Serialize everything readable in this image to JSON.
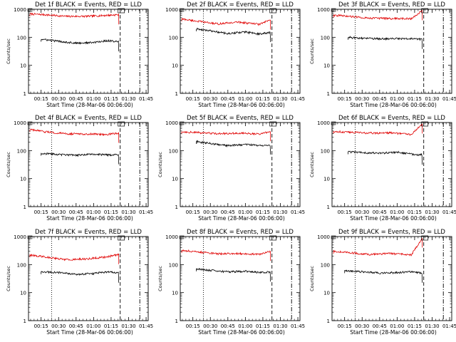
{
  "chart_data": [
    {
      "type": "line",
      "title": "Det 1f BLACK = Events, RED = LLD",
      "xlabel": "Start Time (28-Mar-06 00:06:00)",
      "ylabel": "Counts/sec",
      "xlim": [
        0.07,
        1.78
      ],
      "ylim": [
        1,
        1000
      ],
      "yscale": "log",
      "x_tick_labels": [
        "00:15",
        "00:30",
        "00:45",
        "01:00",
        "01:15",
        "01:30",
        "01:45"
      ],
      "x_tick_values": [
        0.25,
        0.5,
        0.75,
        1.0,
        1.25,
        1.5,
        1.75
      ],
      "y_tick_labels": [
        "1",
        "10",
        "100",
        "1000"
      ],
      "y_tick_values": [
        1,
        10,
        100,
        1000
      ],
      "vlines": [
        {
          "x": 0.4,
          "style": "dotted"
        },
        {
          "x": 1.38,
          "style": "dash"
        },
        {
          "x": 1.66,
          "style": "dashdot"
        }
      ],
      "series": [
        {
          "color": "#e00000",
          "x": [
            0.09,
            0.3,
            0.6,
            0.9,
            1.2,
            1.36
          ],
          "y": [
            680,
            640,
            560,
            560,
            610,
            640
          ]
        },
        {
          "color": "#000000",
          "x": [
            0.25,
            0.5,
            0.75,
            1.0,
            1.2,
            1.36
          ],
          "y": [
            85,
            72,
            62,
            65,
            76,
            70
          ]
        }
      ]
    },
    {
      "type": "line",
      "title": "Det 2f BLACK = Events, RED = LLD",
      "xlabel": "Start Time (28-Mar-06 00:06:00)",
      "ylabel": "",
      "xlim": [
        0.07,
        1.78
      ],
      "ylim": [
        1,
        1000
      ],
      "yscale": "log",
      "x_tick_labels": [
        "00:15",
        "00:30",
        "00:45",
        "01:00",
        "01:15",
        "01:30",
        "01:45"
      ],
      "x_tick_values": [
        0.25,
        0.5,
        0.75,
        1.0,
        1.25,
        1.5,
        1.75
      ],
      "y_tick_labels": [
        "1",
        "10",
        "100",
        "1000"
      ],
      "y_tick_values": [
        1,
        10,
        100,
        1000
      ],
      "vlines": [
        {
          "x": 0.4,
          "style": "dotted"
        },
        {
          "x": 1.38,
          "style": "dash"
        },
        {
          "x": 1.66,
          "style": "dashdot"
        }
      ],
      "series": [
        {
          "color": "#e00000",
          "x": [
            0.09,
            0.3,
            0.6,
            0.9,
            1.2,
            1.36
          ],
          "y": [
            450,
            380,
            300,
            350,
            290,
            420
          ]
        },
        {
          "color": "#000000",
          "x": [
            0.3,
            0.5,
            0.75,
            1.0,
            1.2,
            1.36
          ],
          "y": [
            200,
            170,
            135,
            155,
            130,
            150
          ]
        }
      ]
    },
    {
      "type": "line",
      "title": "Det 3f BLACK = Events, RED = LLD",
      "xlabel": "Start Time (28-Mar-06 00:06:00)",
      "ylabel": "Counts/sec",
      "xlim": [
        0.07,
        1.78
      ],
      "ylim": [
        1,
        1000
      ],
      "yscale": "log",
      "x_tick_labels": [
        "00:15",
        "00:30",
        "00:45",
        "01:00",
        "01:15",
        "01:30",
        "01:45"
      ],
      "x_tick_values": [
        0.25,
        0.5,
        0.75,
        1.0,
        1.25,
        1.5,
        1.75
      ],
      "y_tick_labels": [
        "1",
        "10",
        "100",
        "1000"
      ],
      "y_tick_values": [
        1,
        10,
        100,
        1000
      ],
      "vlines": [
        {
          "x": 0.4,
          "style": "dotted"
        },
        {
          "x": 1.38,
          "style": "dash"
        },
        {
          "x": 1.66,
          "style": "dashdot"
        }
      ],
      "series": [
        {
          "color": "#e00000",
          "x": [
            0.09,
            0.3,
            0.6,
            0.9,
            1.2,
            1.36
          ],
          "y": [
            620,
            560,
            490,
            470,
            460,
            900
          ]
        },
        {
          "color": "#000000",
          "x": [
            0.3,
            0.5,
            0.75,
            1.0,
            1.2,
            1.36
          ],
          "y": [
            100,
            92,
            88,
            90,
            88,
            85
          ]
        }
      ]
    },
    {
      "type": "line",
      "title": "Det 4f BLACK = Events, RED = LLD",
      "xlabel": "Start Time (28-Mar-06 00:06:00)",
      "ylabel": "Counts/sec",
      "xlim": [
        0.07,
        1.78
      ],
      "ylim": [
        1,
        1000
      ],
      "yscale": "log",
      "x_tick_labels": [
        "00:15",
        "00:30",
        "00:45",
        "01:00",
        "01:15",
        "01:30",
        "01:45"
      ],
      "x_tick_values": [
        0.25,
        0.5,
        0.75,
        1.0,
        1.25,
        1.5,
        1.75
      ],
      "y_tick_labels": [
        "1",
        "10",
        "100",
        "1000"
      ],
      "y_tick_values": [
        1,
        10,
        100,
        1000
      ],
      "vlines": [
        {
          "x": 0.4,
          "style": "dotted"
        },
        {
          "x": 1.38,
          "style": "dash"
        },
        {
          "x": 1.66,
          "style": "dashdot"
        }
      ],
      "series": [
        {
          "color": "#e00000",
          "x": [
            0.09,
            0.3,
            0.6,
            0.9,
            1.2,
            1.36
          ],
          "y": [
            560,
            470,
            400,
            390,
            380,
            420
          ]
        },
        {
          "color": "#000000",
          "x": [
            0.25,
            0.5,
            0.75,
            1.0,
            1.2,
            1.36
          ],
          "y": [
            80,
            72,
            68,
            75,
            70,
            72
          ]
        }
      ]
    },
    {
      "type": "line",
      "title": "Det 5f BLACK = Events, RED = LLD",
      "xlabel": "Start Time (28-Mar-06 00:06:00)",
      "ylabel": "Counts/sec",
      "xlim": [
        0.07,
        1.78
      ],
      "ylim": [
        1,
        1000
      ],
      "yscale": "log",
      "x_tick_labels": [
        "00:15",
        "00:30",
        "00:45",
        "01:00",
        "01:15",
        "01:30",
        "01:45"
      ],
      "x_tick_values": [
        0.25,
        0.5,
        0.75,
        1.0,
        1.25,
        1.5,
        1.75
      ],
      "y_tick_labels": [
        "1",
        "10",
        "100",
        "1000"
      ],
      "y_tick_values": [
        1,
        10,
        100,
        1000
      ],
      "vlines": [
        {
          "x": 0.4,
          "style": "dotted"
        },
        {
          "x": 1.38,
          "style": "dash"
        },
        {
          "x": 1.66,
          "style": "dashdot"
        }
      ],
      "series": [
        {
          "color": "#e00000",
          "x": [
            0.09,
            0.3,
            0.6,
            0.9,
            1.2,
            1.36
          ],
          "y": [
            470,
            440,
            400,
            420,
            390,
            480
          ]
        },
        {
          "color": "#000000",
          "x": [
            0.3,
            0.5,
            0.75,
            1.0,
            1.2,
            1.36
          ],
          "y": [
            210,
            180,
            150,
            165,
            150,
            160
          ]
        }
      ]
    },
    {
      "type": "line",
      "title": "Det 6f BLACK = Events, RED = LLD",
      "xlabel": "Start Time (28-Mar-06 00:06:00)",
      "ylabel": "Counts/sec",
      "xlim": [
        0.07,
        1.78
      ],
      "ylim": [
        1,
        1000
      ],
      "yscale": "log",
      "x_tick_labels": [
        "00:15",
        "00:30",
        "00:45",
        "01:00",
        "01:15",
        "01:30",
        "01:45"
      ],
      "x_tick_values": [
        0.25,
        0.5,
        0.75,
        1.0,
        1.25,
        1.5,
        1.75
      ],
      "y_tick_labels": [
        "1",
        "10",
        "100",
        "1000"
      ],
      "y_tick_values": [
        1,
        10,
        100,
        1000
      ],
      "vlines": [
        {
          "x": 0.4,
          "style": "dotted"
        },
        {
          "x": 1.38,
          "style": "dash"
        },
        {
          "x": 1.66,
          "style": "dashdot"
        }
      ],
      "series": [
        {
          "color": "#e00000",
          "x": [
            0.09,
            0.3,
            0.6,
            0.9,
            1.2,
            1.36
          ],
          "y": [
            480,
            460,
            420,
            430,
            380,
            900
          ]
        },
        {
          "color": "#000000",
          "x": [
            0.3,
            0.5,
            0.75,
            1.0,
            1.2,
            1.36
          ],
          "y": [
            90,
            85,
            80,
            88,
            75,
            70
          ]
        }
      ]
    },
    {
      "type": "line",
      "title": "Det 7f BLACK = Events, RED = LLD",
      "xlabel": "Start Time (28-Mar-06 00:06:00)",
      "ylabel": "Counts/sec",
      "xlim": [
        0.07,
        1.78
      ],
      "ylim": [
        1,
        1000
      ],
      "yscale": "log",
      "x_tick_labels": [
        "00:15",
        "00:30",
        "00:45",
        "01:00",
        "01:15",
        "01:30",
        "01:45"
      ],
      "x_tick_values": [
        0.25,
        0.5,
        0.75,
        1.0,
        1.25,
        1.5,
        1.75
      ],
      "y_tick_labels": [
        "1",
        "10",
        "100",
        "1000"
      ],
      "y_tick_values": [
        1,
        10,
        100,
        1000
      ],
      "vlines": [
        {
          "x": 0.4,
          "style": "dotted"
        },
        {
          "x": 1.38,
          "style": "dash"
        },
        {
          "x": 1.66,
          "style": "dashdot"
        }
      ],
      "series": [
        {
          "color": "#e00000",
          "x": [
            0.09,
            0.3,
            0.6,
            0.9,
            1.2,
            1.36
          ],
          "y": [
            220,
            190,
            150,
            160,
            190,
            230
          ]
        },
        {
          "color": "#000000",
          "x": [
            0.25,
            0.5,
            0.75,
            1.0,
            1.2,
            1.36
          ],
          "y": [
            55,
            52,
            45,
            48,
            55,
            50
          ]
        }
      ]
    },
    {
      "type": "line",
      "title": "Det 8f BLACK = Events, RED = LLD",
      "xlabel": "Start Time (28-Mar-06 00:06:00)",
      "ylabel": "Counts/sec",
      "xlim": [
        0.07,
        1.78
      ],
      "ylim": [
        1,
        1000
      ],
      "yscale": "log",
      "x_tick_labels": [
        "00:15",
        "00:30",
        "00:45",
        "01:00",
        "01:15",
        "01:30",
        "01:45"
      ],
      "x_tick_values": [
        0.25,
        0.5,
        0.75,
        1.0,
        1.25,
        1.5,
        1.75
      ],
      "y_tick_labels": [
        "1",
        "10",
        "100",
        "1000"
      ],
      "y_tick_values": [
        1,
        10,
        100,
        1000
      ],
      "vlines": [
        {
          "x": 0.4,
          "style": "dotted"
        },
        {
          "x": 1.38,
          "style": "dash"
        },
        {
          "x": 1.66,
          "style": "dashdot"
        }
      ],
      "series": [
        {
          "color": "#e00000",
          "x": [
            0.09,
            0.3,
            0.6,
            0.9,
            1.2,
            1.36
          ],
          "y": [
            320,
            290,
            240,
            250,
            230,
            300
          ]
        },
        {
          "color": "#000000",
          "x": [
            0.3,
            0.5,
            0.75,
            1.0,
            1.2,
            1.36
          ],
          "y": [
            70,
            62,
            55,
            58,
            52,
            55
          ]
        }
      ]
    },
    {
      "type": "line",
      "title": "Det 9f BLACK = Events, RED = LLD",
      "xlabel": "Start Time (28-Mar-06 00:06:00)",
      "ylabel": "Counts/sec",
      "xlim": [
        0.07,
        1.78
      ],
      "ylim": [
        1,
        1000
      ],
      "yscale": "log",
      "x_tick_labels": [
        "00:15",
        "00:30",
        "00:45",
        "01:00",
        "01:15",
        "01:30",
        "01:45"
      ],
      "x_tick_values": [
        0.25,
        0.5,
        0.75,
        1.0,
        1.25,
        1.5,
        1.75
      ],
      "y_tick_labels": [
        "1",
        "10",
        "100",
        "1000"
      ],
      "y_tick_values": [
        1,
        10,
        100,
        1000
      ],
      "vlines": [
        {
          "x": 0.4,
          "style": "dotted"
        },
        {
          "x": 1.38,
          "style": "dash"
        },
        {
          "x": 1.66,
          "style": "dashdot"
        }
      ],
      "series": [
        {
          "color": "#e00000",
          "x": [
            0.09,
            0.3,
            0.6,
            0.9,
            1.2,
            1.36
          ],
          "y": [
            300,
            270,
            230,
            250,
            220,
            900
          ]
        },
        {
          "color": "#000000",
          "x": [
            0.25,
            0.5,
            0.75,
            1.0,
            1.2,
            1.36
          ],
          "y": [
            60,
            55,
            50,
            52,
            55,
            50
          ]
        }
      ]
    }
  ]
}
